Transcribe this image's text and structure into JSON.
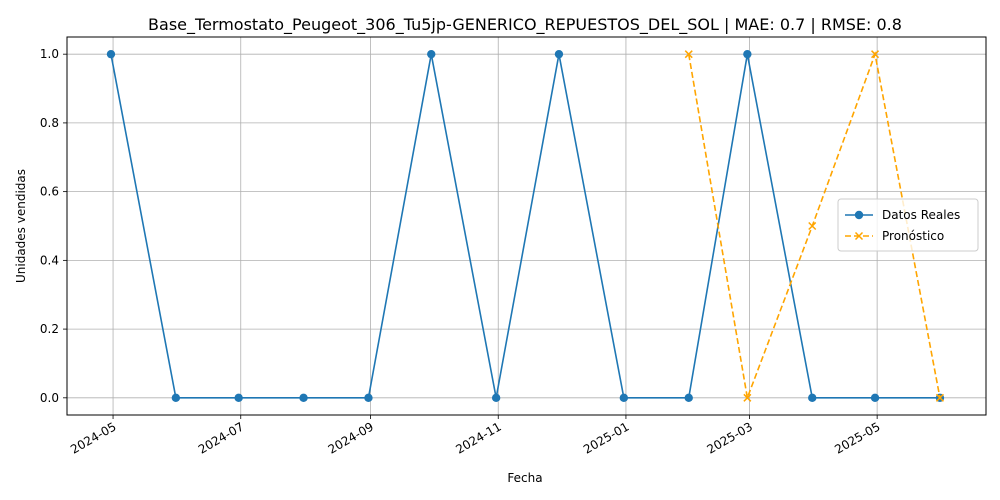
{
  "chart_data": {
    "type": "line",
    "title": "Base_Termostato_Peugeot_306_Tu5jp-GENERICO_REPUESTOS_DEL_SOL | MAE: 0.7 | RMSE: 0.8",
    "xlabel": "Fecha",
    "ylabel": "Unidades vendidas",
    "ylim": [
      -0.05,
      1.05
    ],
    "grid": true,
    "legend_position": "center-right",
    "x_ticks": [
      "2024-05",
      "2024-07",
      "2024-09",
      "2024-11",
      "2025-01",
      "2025-03",
      "2025-05"
    ],
    "y_ticks": [
      "0.0",
      "0.2",
      "0.4",
      "0.6",
      "0.8",
      "1.0"
    ],
    "series": [
      {
        "name": "Datos Reales",
        "color": "#1f77b4",
        "style": "solid",
        "marker": "circle",
        "x": [
          "2024-04-30",
          "2024-05-31",
          "2024-06-30",
          "2024-07-31",
          "2024-08-31",
          "2024-09-30",
          "2024-10-31",
          "2024-11-30",
          "2024-12-31",
          "2025-01-31",
          "2025-02-28",
          "2025-03-31",
          "2025-04-30",
          "2025-05-31"
        ],
        "values": [
          1,
          0,
          0,
          0,
          0,
          1,
          0,
          1,
          0,
          0,
          1,
          0,
          0,
          0
        ]
      },
      {
        "name": "Pronóstico",
        "color": "#ffa500",
        "style": "dashed",
        "marker": "x",
        "x": [
          "2025-01-31",
          "2025-02-28",
          "2025-03-31",
          "2025-04-30",
          "2025-05-31"
        ],
        "values": [
          1,
          0,
          0.5,
          1,
          0
        ]
      }
    ]
  }
}
